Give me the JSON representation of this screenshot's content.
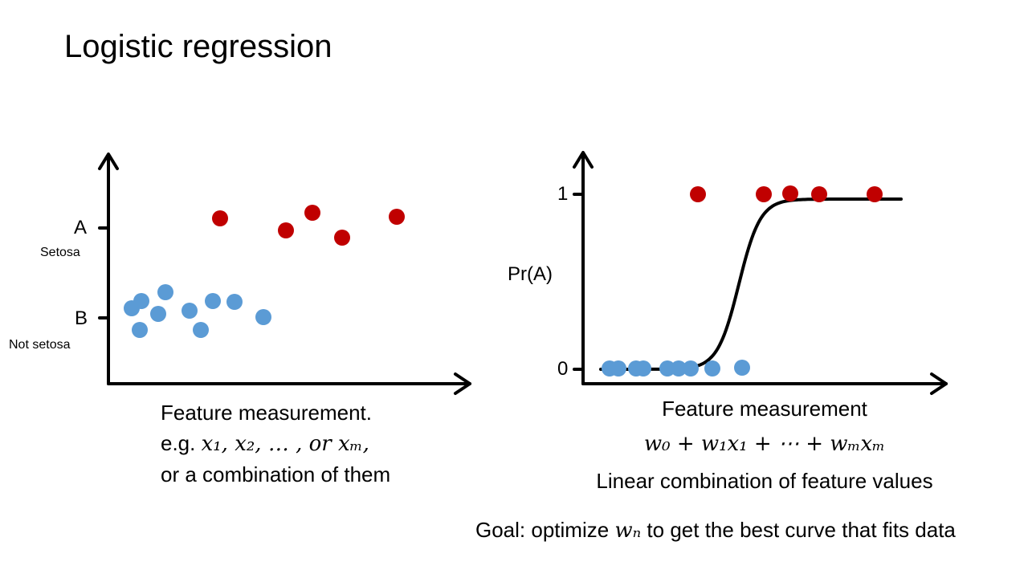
{
  "slide": {
    "title": "Logistic regression"
  },
  "left_panel": {
    "y_tick_a": "A",
    "y_tick_a_sub": "Setosa",
    "y_tick_b": "B",
    "y_tick_b_sub": "Not setosa",
    "caption_line1": "Feature measurement.",
    "caption_line2_prefix": "e.g. ",
    "caption_line2_math": "x₁, x₂, … , or xₘ,",
    "caption_line3": "or a combination of them",
    "setosa_points": [
      [
        274,
        272
      ],
      [
        356,
        287
      ],
      [
        389,
        265
      ],
      [
        426,
        296
      ],
      [
        494,
        270
      ]
    ],
    "not_setosa_points": [
      [
        164,
        384
      ],
      [
        176,
        375
      ],
      [
        206,
        364
      ],
      [
        174,
        411
      ],
      [
        197,
        391
      ],
      [
        236,
        387
      ],
      [
        250,
        411
      ],
      [
        265,
        375
      ],
      [
        292,
        376
      ],
      [
        328,
        395
      ]
    ]
  },
  "right_panel": {
    "y_tick_1": "1",
    "y_tick_0": "0",
    "y_label": "Pr(A)",
    "caption_line1": "Feature measurement",
    "formula": "w₀ + w₁x₁ + ⋯ + wₘxₘ",
    "caption_line3": "Linear combination of feature values",
    "class_a_points": [
      [
        869,
        242
      ],
      [
        951,
        242
      ],
      [
        984,
        241
      ],
      [
        1020,
        242
      ],
      [
        1089,
        242
      ]
    ],
    "class_b_points": [
      [
        759,
        459
      ],
      [
        770,
        459
      ],
      [
        792,
        459
      ],
      [
        801,
        459
      ],
      [
        831,
        459
      ],
      [
        845,
        459
      ],
      [
        860,
        459
      ],
      [
        887,
        459
      ],
      [
        924,
        458
      ]
    ]
  },
  "footer": {
    "goal_prefix": "Goal: optimize ",
    "goal_math": "wₙ",
    "goal_suffix": " to get the best curve that fits data"
  },
  "colors": {
    "setosa_red": "#C00000",
    "not_setosa_blue": "#5B9BD5",
    "axis_black": "#000000"
  }
}
